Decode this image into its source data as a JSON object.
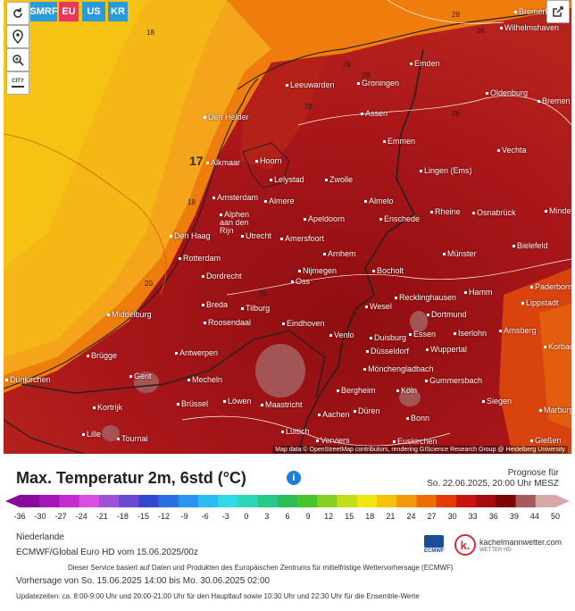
{
  "controls": {
    "refresh_icon": "refresh-icon",
    "location_icon": "location-pin-icon",
    "zoom_icon": "zoom-icon",
    "city_label": "CITY"
  },
  "models": [
    {
      "label": "SMRF",
      "color": "#2b9ad8"
    },
    {
      "label": "EU",
      "color": "#e8365d"
    },
    {
      "label": "US",
      "color": "#2b9ad8"
    },
    {
      "label": "KR",
      "color": "#2b9ad8"
    }
  ],
  "cities": [
    {
      "name": "Bremerhaven"
    },
    {
      "name": "Wilhelmshaven"
    },
    {
      "name": "Emden"
    },
    {
      "name": "Leeuwarden"
    },
    {
      "name": "Groningen"
    },
    {
      "name": "Oldenburg"
    },
    {
      "name": "Bremen"
    },
    {
      "name": "Den Helder"
    },
    {
      "name": "Assen"
    },
    {
      "name": "Emmen"
    },
    {
      "name": "Vechta"
    },
    {
      "name": "Alkmaar"
    },
    {
      "name": "Hoorn"
    },
    {
      "name": "Lingen (Ems)"
    },
    {
      "name": "Lelystad"
    },
    {
      "name": "Zwolle"
    },
    {
      "name": "Almere"
    },
    {
      "name": "Amsterdam"
    },
    {
      "name": "Almelo"
    },
    {
      "name": "Rheine"
    },
    {
      "name": "Osnabrück"
    },
    {
      "name": "Minden"
    },
    {
      "name": "Alphen aan den Rijn"
    },
    {
      "name": "Enschede"
    },
    {
      "name": "Apeldoorn"
    },
    {
      "name": "Den Haag"
    },
    {
      "name": "Utrecht"
    },
    {
      "name": "Amersfoort"
    },
    {
      "name": "Bielefeld"
    },
    {
      "name": "Arnhem"
    },
    {
      "name": "Rotterdam"
    },
    {
      "name": "Münster"
    },
    {
      "name": "Bocholt"
    },
    {
      "name": "Nijmegen"
    },
    {
      "name": "Dordrecht"
    },
    {
      "name": "Oss"
    },
    {
      "name": "Paderborn"
    },
    {
      "name": "Hamm"
    },
    {
      "name": "Breda"
    },
    {
      "name": "Tilburg"
    },
    {
      "name": "Recklinghausen"
    },
    {
      "name": "Wesel"
    },
    {
      "name": "Lippstadt"
    },
    {
      "name": "Middelburg"
    },
    {
      "name": "Roosendaal"
    },
    {
      "name": "Eindhoven"
    },
    {
      "name": "Dortmund"
    },
    {
      "name": "Venlo"
    },
    {
      "name": "Essen"
    },
    {
      "name": "Iserlohn"
    },
    {
      "name": "Arnsberg"
    },
    {
      "name": "Duisburg"
    },
    {
      "name": "Brügge"
    },
    {
      "name": "Antwerpen"
    },
    {
      "name": "Wuppertal"
    },
    {
      "name": "Düsseldorf"
    },
    {
      "name": "Korbac"
    },
    {
      "name": "Mönchengladbach"
    },
    {
      "name": "Dünkirchen"
    },
    {
      "name": "Gent"
    },
    {
      "name": "Mecheln"
    },
    {
      "name": "Gummersbach"
    },
    {
      "name": "Bergheim"
    },
    {
      "name": "Köln"
    },
    {
      "name": "Siegen"
    },
    {
      "name": "Löwen"
    },
    {
      "name": "Brüssel"
    },
    {
      "name": "Maastricht"
    },
    {
      "name": "Kortrijk"
    },
    {
      "name": "Aachen"
    },
    {
      "name": "Düren"
    },
    {
      "name": "Bonn"
    },
    {
      "name": "Marburg"
    },
    {
      "name": "Lille"
    },
    {
      "name": "Tournai"
    },
    {
      "name": "Lüttich"
    },
    {
      "name": "Verviers"
    },
    {
      "name": "Euskirchen"
    },
    {
      "name": "Gießen"
    }
  ],
  "contours": [
    "18",
    "17",
    "18",
    "20",
    "28",
    "28",
    "28",
    "28",
    "26",
    "28",
    "20"
  ],
  "attribution": "Map data © OpenStreetMap contributors, rendering GIScience Research Group @ Heidelberg University",
  "legend": {
    "title": "Max. Temperatur 2m, 6std (°C)",
    "info_icon": "info-icon",
    "forecast_label": "Prognose für",
    "forecast_time": "So. 22.06.2025, 20:00 Uhr MESZ",
    "ticks": [
      "-36",
      "-30",
      "-27",
      "-24",
      "-21",
      "-18",
      "-15",
      "-12",
      "-9",
      "-6",
      "-3",
      "0",
      "3",
      "6",
      "9",
      "12",
      "15",
      "18",
      "21",
      "24",
      "27",
      "30",
      "33",
      "36",
      "39",
      "44",
      "50"
    ],
    "colors": [
      "#8a0a9e",
      "#a316b8",
      "#c22bd0",
      "#d94fe0",
      "#9d52d8",
      "#6a4ad0",
      "#3447d1",
      "#2c6fe0",
      "#2b96ef",
      "#2bbdf2",
      "#31d8e6",
      "#2ad8b6",
      "#2ac98a",
      "#2dbd55",
      "#49c431",
      "#85d022",
      "#c2dd1a",
      "#f2e60f",
      "#f5c20c",
      "#f49909",
      "#ef6d07",
      "#e53b06",
      "#c9130f",
      "#a30d0d",
      "#7b0606",
      "#a35b5b",
      "#d8a8a8"
    ]
  },
  "meta": {
    "region": "Niederlande",
    "model": "ECMWF/Global Euro HD vom 15.06.2025/00z",
    "service": "Dieser Service basiert auf Daten und Produkten des Europäischen Zentrums für mittelfristige Wettervorhersage (ECMWF)",
    "period": "Vorhersage von So. 15.06.2025 14:00 bis Mo. 30.06.2025 02:00",
    "update": "Updatezeiten: ca. 8:00-9:00 Uhr und 20:00-21:00 Uhr für den Hauptlauf sowie 10:30 Uhr und 22:30 Uhr für die Ensemble-Werte",
    "ecmwf_label": "ECMWF",
    "brand": "kachelmannwetter.com",
    "brand_sub": "WETTER HD"
  }
}
